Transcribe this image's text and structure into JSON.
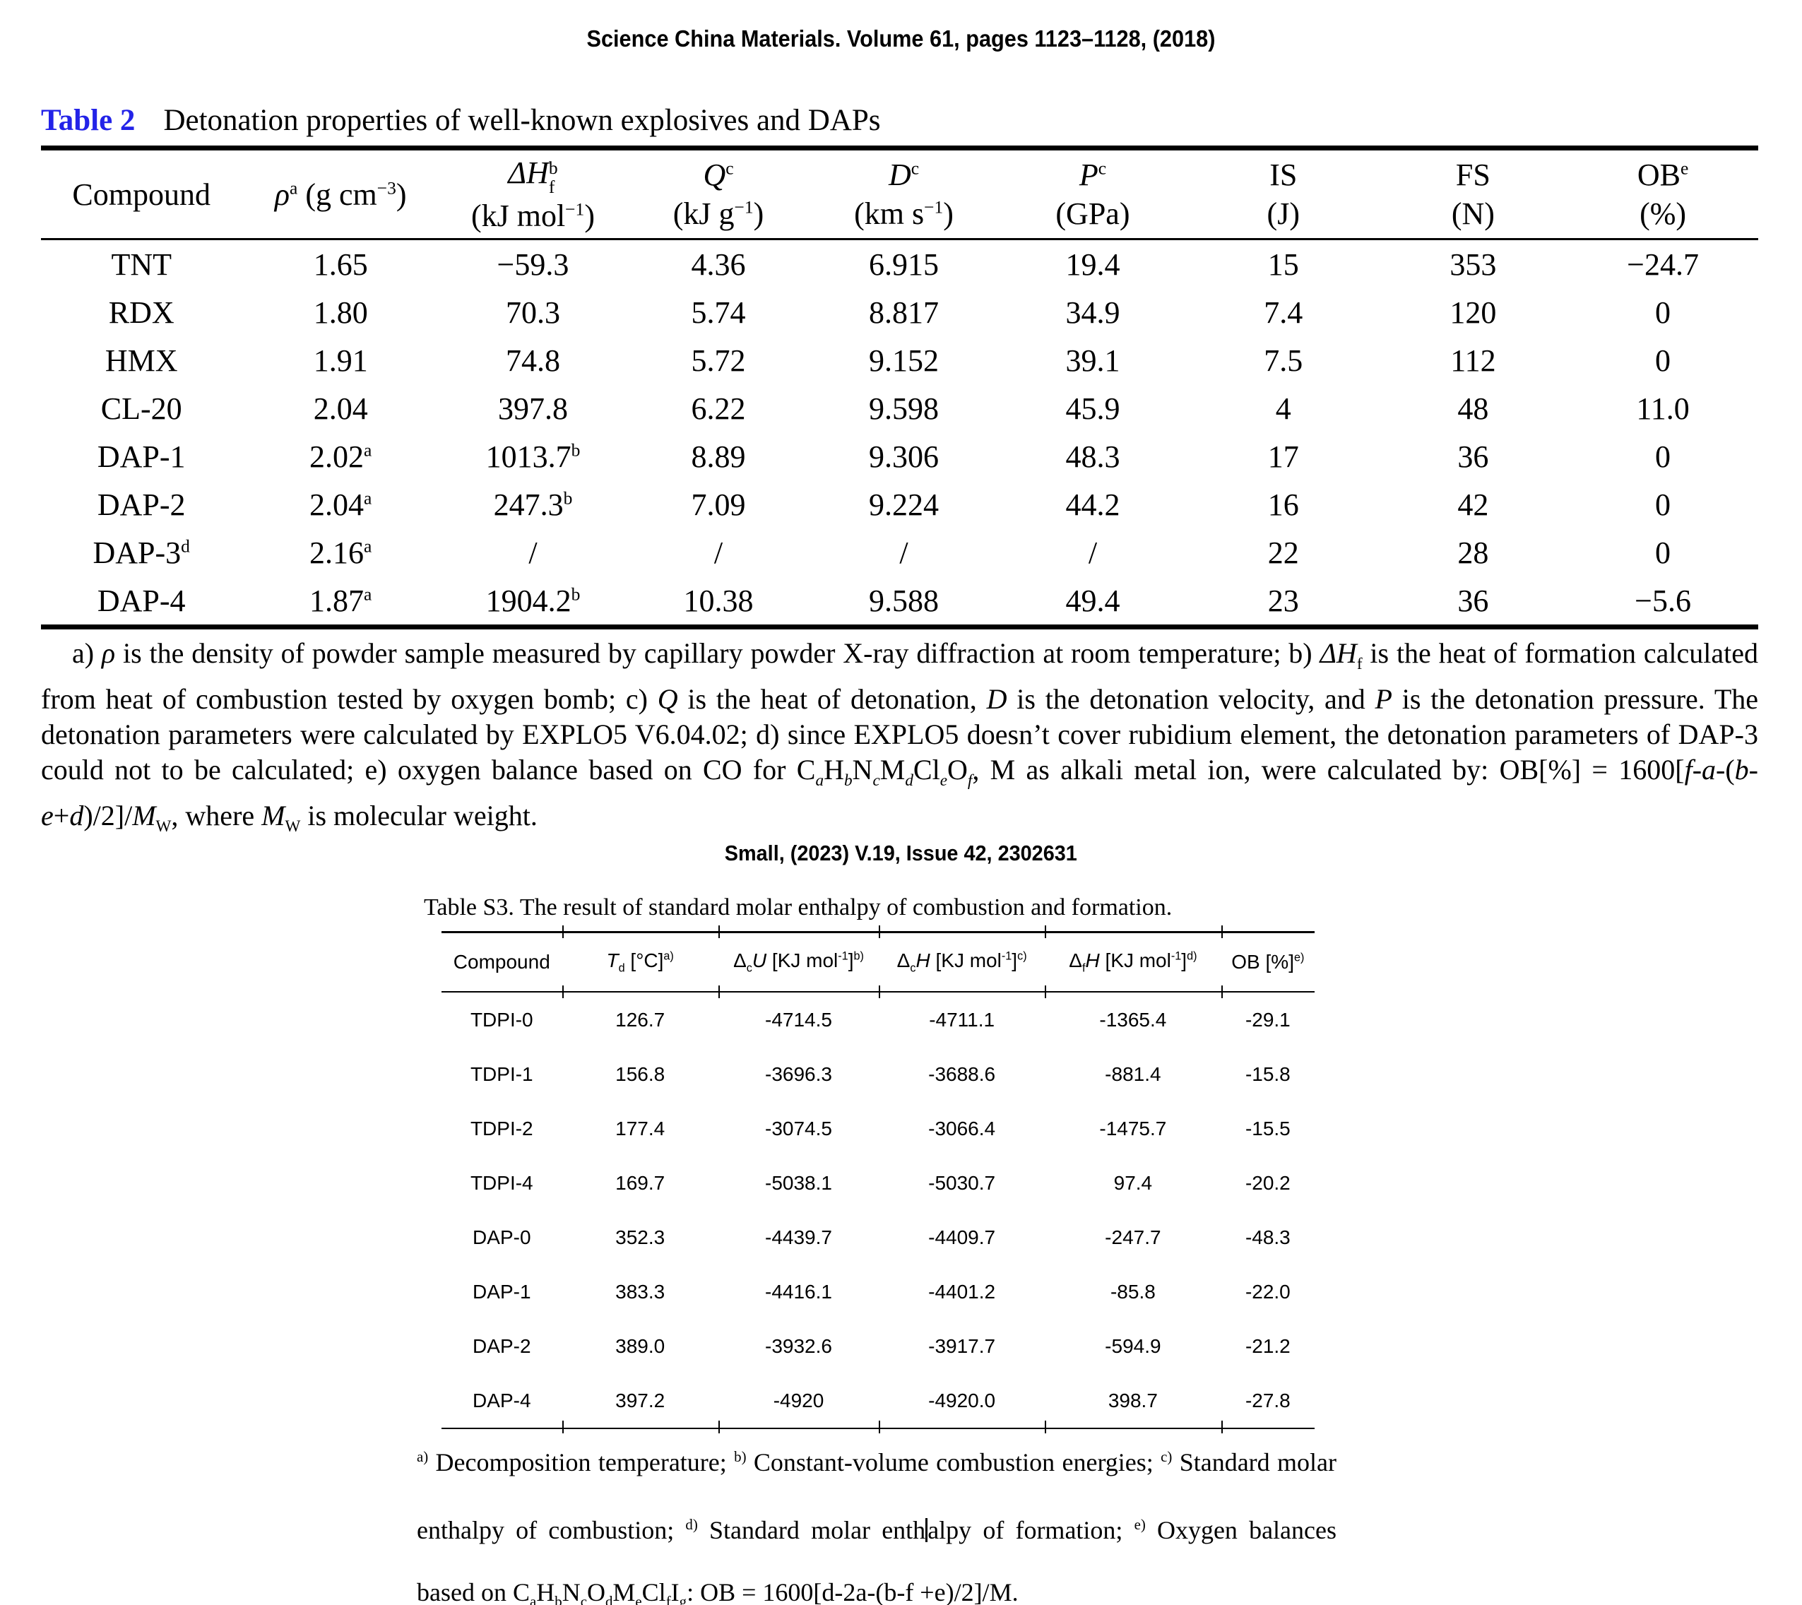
{
  "citations": {
    "first": "Science China Materials. Volume 61, pages 1123–1128, (2018)",
    "second": "Small, (2023) V.19, Issue 42, 2302631"
  },
  "table2": {
    "label": "Table 2",
    "caption": "Detonation properties of well-known explosives and DAPs",
    "headers": [
      "Compound",
      "<i>ρ</i><sup>a</sup> (g cm<sup>−3</sup>)",
      "<i>ΔH</i><span class='ss'><span>b</span><span>f</span></span><br>(kJ mol<sup>−1</sup>)",
      "<i>Q</i><sup>c</sup><br>(kJ g<sup>−1</sup>)",
      "<i>D</i><sup>c</sup><br>(km s<sup>−1</sup>)",
      "<i>P</i><sup>c</sup><br>(GPa)",
      "IS<br>(J)",
      "FS<br>(N)",
      "OB<sup>e</sup><br>(%)"
    ],
    "rows": [
      [
        "TNT",
        "1.65",
        "−59.3",
        "4.36",
        "6.915",
        "19.4",
        "15",
        "353",
        "−24.7"
      ],
      [
        "RDX",
        "1.80",
        "70.3",
        "5.74",
        "8.817",
        "34.9",
        "7.4",
        "120",
        "0"
      ],
      [
        "HMX",
        "1.91",
        "74.8",
        "5.72",
        "9.152",
        "39.1",
        "7.5",
        "112",
        "0"
      ],
      [
        "CL-20",
        "2.04",
        "397.8",
        "6.22",
        "9.598",
        "45.9",
        "4",
        "48",
        "11.0"
      ],
      [
        "DAP-1",
        "2.02<sup>a</sup>",
        "1013.7<sup>b</sup>",
        "8.89",
        "9.306",
        "48.3",
        "17",
        "36",
        "0"
      ],
      [
        "DAP-2",
        "2.04<sup>a</sup>",
        "247.3<sup>b</sup>",
        "7.09",
        "9.224",
        "44.2",
        "16",
        "42",
        "0"
      ],
      [
        "DAP-3<sup>d</sup>",
        "2.16<sup>a</sup>",
        "/",
        "/",
        "/",
        "/",
        "22",
        "28",
        "0"
      ],
      [
        "DAP-4",
        "1.87<sup>a</sup>",
        "1904.2<sup>b</sup>",
        "10.38",
        "9.588",
        "49.4",
        "23",
        "36",
        "−5.6"
      ]
    ],
    "footnote": "a) <i>ρ</i> is the density of powder sample measured by capillary powder X-ray diffraction at room temperature; b) <i>ΔH</i><sub>f</sub> is the heat of formation calculated from heat of combustion tested by oxygen bomb; c) <i>Q</i> is the heat of detonation, <i>D</i> is the detonation velocity, and <i>P</i> is the detonation pressure. The detonation parameters were calculated by EXPLO5 V6.04.02; d) since EXPLO5 doesn’t cover rubidium element, the detonation parameters of DAP-3 could not to be calculated; e) oxygen balance based on CO for C<sub><i>a</i></sub>H<sub><i>b</i></sub>N<sub><i>c</i></sub>M<sub><i>d</i></sub>Cl<sub><i>e</i></sub>O<sub><i>f</i></sub>, M as alkali metal ion, were calculated by: OB[%] = 1600[<i>f</i>-<i>a</i>-(<i>b</i>-<i>e</i>+<i>d</i>)/2]/<i>M</i><sub>W</sub>, where <i>M</i><sub>W</sub> is molecular weight."
  },
  "tableS3": {
    "title": "Table S3. The result of standard molar enthalpy of combustion and formation.",
    "headers": [
      "Compound",
      "<i>T</i><sub>d</sub> [°C]<sup>a)</sup>",
      "Δ<sub>c</sub><i>U</i> [KJ mol<sup>-1</sup>]<sup>b)</sup>",
      "Δ<sub>c</sub><i>H</i> [KJ mol<sup>-1</sup>]<sup>c)</sup>",
      "Δ<sub>f</sub><i>H</i> [KJ mol<sup>-1</sup>]<sup>d)</sup>",
      "OB [%]<sup>e)</sup>"
    ],
    "rows": [
      [
        "TDPI-0",
        "126.7",
        "-4714.5",
        "-4711.1",
        "-1365.4",
        "-29.1"
      ],
      [
        "TDPI-1",
        "156.8",
        "-3696.3",
        "-3688.6",
        "-881.4",
        "-15.8"
      ],
      [
        "TDPI-2",
        "177.4",
        "-3074.5",
        "-3066.4",
        "-1475.7",
        "-15.5"
      ],
      [
        "TDPI-4",
        "169.7",
        "-5038.1",
        "-5030.7",
        "97.4",
        "-20.2"
      ],
      [
        "DAP-0",
        "352.3",
        "-4439.7",
        "-4409.7",
        "-247.7",
        "-48.3"
      ],
      [
        "DAP-1",
        "383.3",
        "-4416.1",
        "-4401.2",
        "-85.8",
        "-22.0"
      ],
      [
        "DAP-2",
        "389.0",
        "-3932.6",
        "-3917.7",
        "-594.9",
        "-21.2"
      ],
      [
        "DAP-4",
        "397.2",
        "-4920",
        "-4920.0",
        "398.7",
        "-27.8"
      ]
    ],
    "footnote": "<sup>a)</sup> Decomposition temperature; <sup>b)</sup> Constant-volume combustion energies; <sup>c)</sup> Standard molar enthalpy of combustion; <sup>d)</sup> Standard molar enth<span class='caret' data-name='text-cursor' data-interactable='false'></span>alpy of formation; <sup>e)</sup> Oxygen balances based on C<sub>a</sub>H<sub>b</sub>N<sub>c</sub>O<sub>d</sub>M<sub>e</sub>Cl<sub>f</sub>I<sub>g</sub>: OB = 1600[d-2a-(b-f +e)/2]/M."
  }
}
